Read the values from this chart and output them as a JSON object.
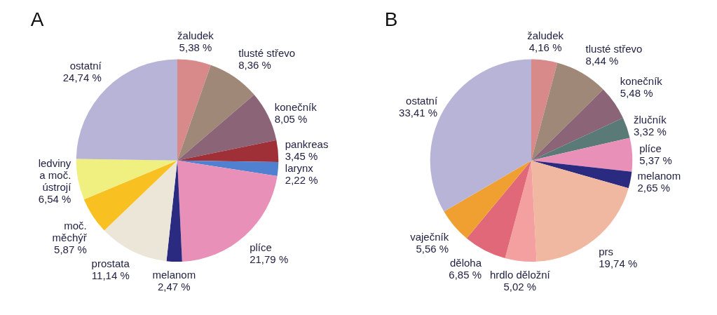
{
  "chart_data": [
    {
      "type": "pie",
      "title": "A",
      "categories": [
        "žaludek",
        "tlusté střevo",
        "konečník",
        "pankreas",
        "larynx",
        "plíce",
        "melanom",
        "prostata",
        "moč.\nměchýř",
        "ledviny\na moč.\nústrojí",
        "ostatní"
      ],
      "values": [
        5.38,
        8.36,
        8.05,
        3.45,
        2.22,
        21.79,
        2.47,
        11.14,
        5.87,
        6.54,
        24.74
      ],
      "value_labels": [
        "5,38 %",
        "8,36 %",
        "8,05 %",
        "3,45 %",
        "2,22 %",
        "21,79 %",
        "2,47 %",
        "11,14 %",
        "5,87 %",
        "6,54 %",
        "24,74 %"
      ],
      "colors": [
        "#d88a8a",
        "#a08878",
        "#8c6478",
        "#a03038",
        "#5080d0",
        "#e890b8",
        "#2a2a80",
        "#ece6d8",
        "#f8c020",
        "#f0f080",
        "#b8b4d8"
      ]
    },
    {
      "type": "pie",
      "title": "B",
      "categories": [
        "žaludek",
        "tlusté střevo",
        "konečník",
        "žlučník",
        "plíce",
        "melanom",
        "prs",
        "hrdlo děložní",
        "děloha",
        "vaječník",
        "ostatní"
      ],
      "values": [
        4.16,
        8.44,
        5.48,
        3.32,
        5.37,
        2.65,
        19.74,
        5.02,
        6.85,
        5.56,
        33.41
      ],
      "value_labels": [
        "4,16 %",
        "8,44 %",
        "5,48 %",
        "3,32 %",
        "5,37 %",
        "2,65 %",
        "19,74 %",
        "5,02 %",
        "6,85 %",
        "5,56 %",
        "33,41 %"
      ],
      "colors": [
        "#d88a8a",
        "#a08878",
        "#8c6478",
        "#5a7a78",
        "#e890b8",
        "#2a2a80",
        "#f0b8a0",
        "#f4a0a0",
        "#e06878",
        "#f0a030",
        "#b8b4d8"
      ]
    }
  ]
}
